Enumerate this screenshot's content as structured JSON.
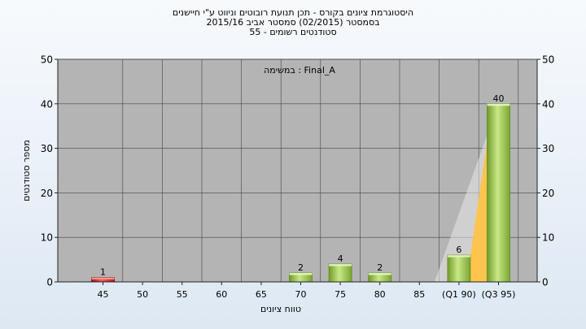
{
  "chart_data": {
    "type": "bar",
    "title_lines": [
      "היסטוגרמת ציונים בקורס - תכן תנועת רובוטים וניווט ע\"י חיישנים",
      "בסמסטר   (02/2015)  סמסטר אביב 2015/16",
      "סטודנטים רשומים - 55"
    ],
    "annotation": "במשימה : Final_A",
    "categories": [
      "45",
      "50",
      "55",
      "60",
      "65",
      "70",
      "75",
      "80",
      "85",
      "(Q1 90)",
      "(Q3 95)"
    ],
    "values": [
      1,
      0,
      0,
      0,
      0,
      2,
      4,
      2,
      0,
      6,
      40
    ],
    "data_labels": [
      "1",
      "",
      "",
      "",
      "",
      "2",
      "4",
      "2",
      "",
      "6",
      "40"
    ],
    "bar_colors": [
      "#cc2222",
      "#9ccc4a",
      "#9ccc4a",
      "#9ccc4a",
      "#9ccc4a",
      "#9ccc4a",
      "#9ccc4a",
      "#9ccc4a",
      "#9ccc4a",
      "#9ccc4a",
      "#9ccc4a"
    ],
    "xlabel": "טווח ציונים",
    "ylabel": "מספר סטודנטים",
    "ylim": [
      0,
      50
    ],
    "yticks": [
      "0",
      "10",
      "20",
      "30",
      "40",
      "50"
    ],
    "grid": true,
    "plot_background": "#b4b4b4",
    "quartile_band_color": "#ffc44d"
  }
}
